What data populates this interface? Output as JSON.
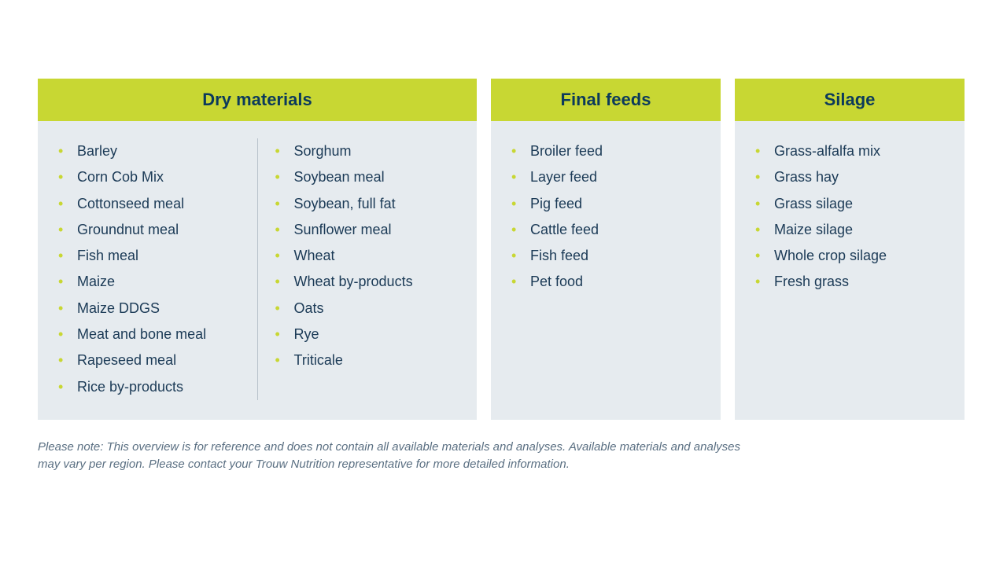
{
  "colors": {
    "header_bg": "#c8d733",
    "header_text": "#0c3a5b",
    "body_bg": "#e6ebef",
    "item_text": "#1b3a56",
    "bullet": "#c8d733",
    "divider": "#b8c2cb",
    "footnote": "#5a6f82",
    "page_bg": "#ffffff"
  },
  "typography": {
    "header_fontsize": 22,
    "header_weight": 700,
    "item_fontsize": 18,
    "footnote_fontsize": 15
  },
  "layout": {
    "card_gap": 18,
    "dry_width": 558,
    "final_width": 292,
    "silage_width": 292,
    "body_min_height": 380
  },
  "cards": {
    "dry": {
      "title": "Dry materials",
      "col1": [
        "Barley",
        "Corn Cob Mix",
        "Cottonseed meal",
        "Groundnut meal",
        "Fish meal",
        "Maize",
        "Maize DDGS",
        "Meat and bone meal",
        "Rapeseed meal",
        "Rice by-products"
      ],
      "col2": [
        "Sorghum",
        "Soybean meal",
        "Soybean, full fat",
        "Sunflower meal",
        "Wheat",
        "Wheat by-products",
        "Oats",
        "Rye",
        "Triticale"
      ]
    },
    "final": {
      "title": "Final feeds",
      "items": [
        "Broiler feed",
        "Layer feed",
        "Pig feed",
        "Cattle feed",
        "Fish feed",
        "Pet food"
      ]
    },
    "silage": {
      "title": "Silage",
      "items": [
        "Grass-alfalfa mix",
        "Grass hay",
        "Grass silage",
        "Maize silage",
        "Whole crop silage",
        "Fresh grass"
      ]
    }
  },
  "footnote": "Please note: This overview is for reference and does not contain all available materials and analyses. Available materials and analyses may vary per region. Please contact your Trouw Nutrition representative for more detailed information."
}
